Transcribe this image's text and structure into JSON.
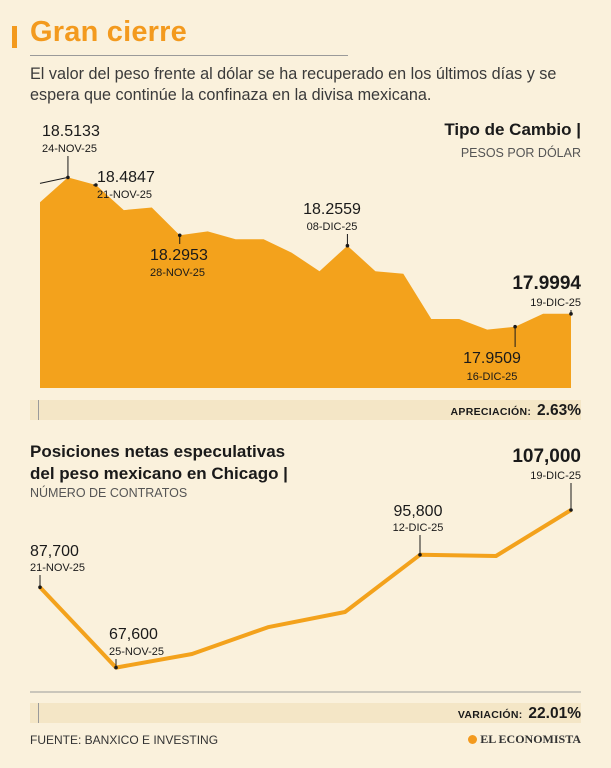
{
  "header": {
    "title": "Gran cierre",
    "subtitle": "El valor del peso frente al dólar se ha recuperado en los últimos días y se espera que continúe la confinaza en la divisa mexicana."
  },
  "colors": {
    "accent": "#f39a1e",
    "area": "#f3a21c",
    "background": "#faf1dc",
    "band": "#f4e6c6"
  },
  "chart_data": [
    {
      "type": "area",
      "title": "Tipo de Cambio |",
      "subtitle": "PESOS POR DÓLAR",
      "values": [
        18.42,
        18.5133,
        18.4847,
        18.39,
        18.4,
        18.2953,
        18.31,
        18.28,
        18.28,
        18.23,
        18.16,
        18.2559,
        18.16,
        18.15,
        17.98,
        17.98,
        17.94,
        17.9509,
        18.0,
        17.9994
      ],
      "ylim": [
        17.72,
        18.56
      ],
      "annotations": [
        {
          "index": 1,
          "value": "18.5133",
          "date": "24-NOV-25"
        },
        {
          "index": 2,
          "value": "18.4847",
          "date": "21-NOV-25"
        },
        {
          "index": 5,
          "value": "18.2953",
          "date": "28-NOV-25"
        },
        {
          "index": 11,
          "value": "18.2559",
          "date": "08-DIC-25"
        },
        {
          "index": 17,
          "value": "17.9509",
          "date": "16-DIC-25"
        },
        {
          "index": 19,
          "value": "17.9994",
          "date": "19-DIC-25"
        }
      ],
      "summary": {
        "label": "APRECIACIÓN:",
        "value": "2.63%"
      }
    },
    {
      "type": "line",
      "title_line1": "Posiciones netas especulativas",
      "title_line2": "del peso mexicano en Chicago |",
      "subtitle": "NÚMERO DE CONTRATOS",
      "values": [
        87700,
        67600,
        71000,
        77700,
        81500,
        95800,
        95500,
        107000
      ],
      "ylim": [
        62000,
        112000
      ],
      "annotations": [
        {
          "index": 0,
          "value": "87,700",
          "date": "21-NOV-25"
        },
        {
          "index": 1,
          "value": "67,600",
          "date": "25-NOV-25"
        },
        {
          "index": 5,
          "value": "95,800",
          "date": "12-DIC-25"
        },
        {
          "index": 7,
          "value": "107,000",
          "date": "19-DIC-25"
        }
      ],
      "summary": {
        "label": "VARIACIÓN:",
        "value": "22.01%"
      }
    }
  ],
  "footer": {
    "source": "FUENTE: BANXICO E INVESTING",
    "brand": "EL ECONOMISTA"
  }
}
